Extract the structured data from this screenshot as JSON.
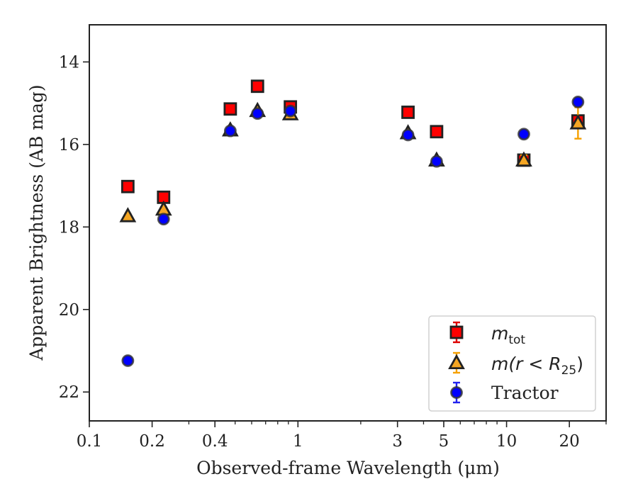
{
  "chart_data": {
    "type": "scatter",
    "xlabel": "Observed-frame Wavelength (μm)",
    "ylabel": "Apparent Brightness (AB mag)",
    "xscale": "log",
    "xlim": [
      0.1,
      30
    ],
    "ylim": [
      22.7,
      13.1
    ],
    "y_inverted": true,
    "x_ticks": [
      {
        "value": 0.1,
        "label": "0.1"
      },
      {
        "value": 0.2,
        "label": "0.2"
      },
      {
        "value": 0.4,
        "label": "0.4"
      },
      {
        "value": 1,
        "label": "1"
      },
      {
        "value": 3,
        "label": "3"
      },
      {
        "value": 5,
        "label": "5"
      },
      {
        "value": 10,
        "label": "10"
      },
      {
        "value": 20,
        "label": "20"
      }
    ],
    "y_ticks": [
      {
        "value": 14,
        "label": "14"
      },
      {
        "value": 16,
        "label": "16"
      },
      {
        "value": 18,
        "label": "18"
      },
      {
        "value": 20,
        "label": "20"
      },
      {
        "value": 22,
        "label": "22"
      }
    ],
    "grid": false,
    "legend_position": "lower-right",
    "series": [
      {
        "name": "m_tot",
        "legend_label": {
          "main": "m",
          "sub": "tot"
        },
        "marker": "square",
        "fill": "#ff0000",
        "errorbar_color": "#dd0000",
        "points": [
          {
            "x": 0.153,
            "y": 17.02,
            "yerr": 0.05
          },
          {
            "x": 0.227,
            "y": 17.28,
            "yerr": 0.05
          },
          {
            "x": 0.474,
            "y": 15.14,
            "yerr": 0.05
          },
          {
            "x": 0.64,
            "y": 14.59,
            "yerr": 0.05
          },
          {
            "x": 0.92,
            "y": 15.09,
            "yerr": 0.05
          },
          {
            "x": 3.37,
            "y": 15.22,
            "yerr": 0.05
          },
          {
            "x": 4.62,
            "y": 15.69,
            "yerr": 0.05
          },
          {
            "x": 12.1,
            "y": 16.38,
            "yerr": 0.05
          },
          {
            "x": 22.0,
            "y": 15.43,
            "yerr": 0.12
          }
        ]
      },
      {
        "name": "m(r < R25)",
        "legend_label": {
          "main": "m(r < R",
          "sub": "25",
          "tail": ")"
        },
        "marker": "triangle",
        "fill": "#f5a623",
        "errorbar_color": "#f5a000",
        "points": [
          {
            "x": 0.153,
            "y": 17.73,
            "yerr": 0.05
          },
          {
            "x": 0.227,
            "y": 17.57,
            "yerr": 0.05
          },
          {
            "x": 0.474,
            "y": 15.65,
            "yerr": 0.05
          },
          {
            "x": 0.64,
            "y": 15.18,
            "yerr": 0.05
          },
          {
            "x": 0.92,
            "y": 15.26,
            "yerr": 0.05
          },
          {
            "x": 3.37,
            "y": 15.72,
            "yerr": 0.05
          },
          {
            "x": 4.62,
            "y": 16.38,
            "yerr": 0.05
          },
          {
            "x": 12.1,
            "y": 16.38,
            "yerr": 0.12
          },
          {
            "x": 22.0,
            "y": 15.48,
            "yerr": 0.38
          }
        ]
      },
      {
        "name": "Tractor",
        "legend_label": {
          "main": "Tractor"
        },
        "marker": "circle",
        "fill": "#0000ff",
        "errorbar_color": "#2222ee",
        "points": [
          {
            "x": 0.153,
            "y": 21.24,
            "yerr": 0.06
          },
          {
            "x": 0.227,
            "y": 17.81,
            "yerr": 0.06
          },
          {
            "x": 0.474,
            "y": 15.67,
            "yerr": 0.05
          },
          {
            "x": 0.64,
            "y": 15.25,
            "yerr": 0.05
          },
          {
            "x": 0.92,
            "y": 15.19,
            "yerr": 0.05
          },
          {
            "x": 3.37,
            "y": 15.77,
            "yerr": 0.05
          },
          {
            "x": 4.62,
            "y": 16.41,
            "yerr": 0.05
          },
          {
            "x": 12.1,
            "y": 15.75,
            "yerr": 0.05
          },
          {
            "x": 22.0,
            "y": 14.97,
            "yerr": 0.05
          }
        ]
      }
    ]
  }
}
